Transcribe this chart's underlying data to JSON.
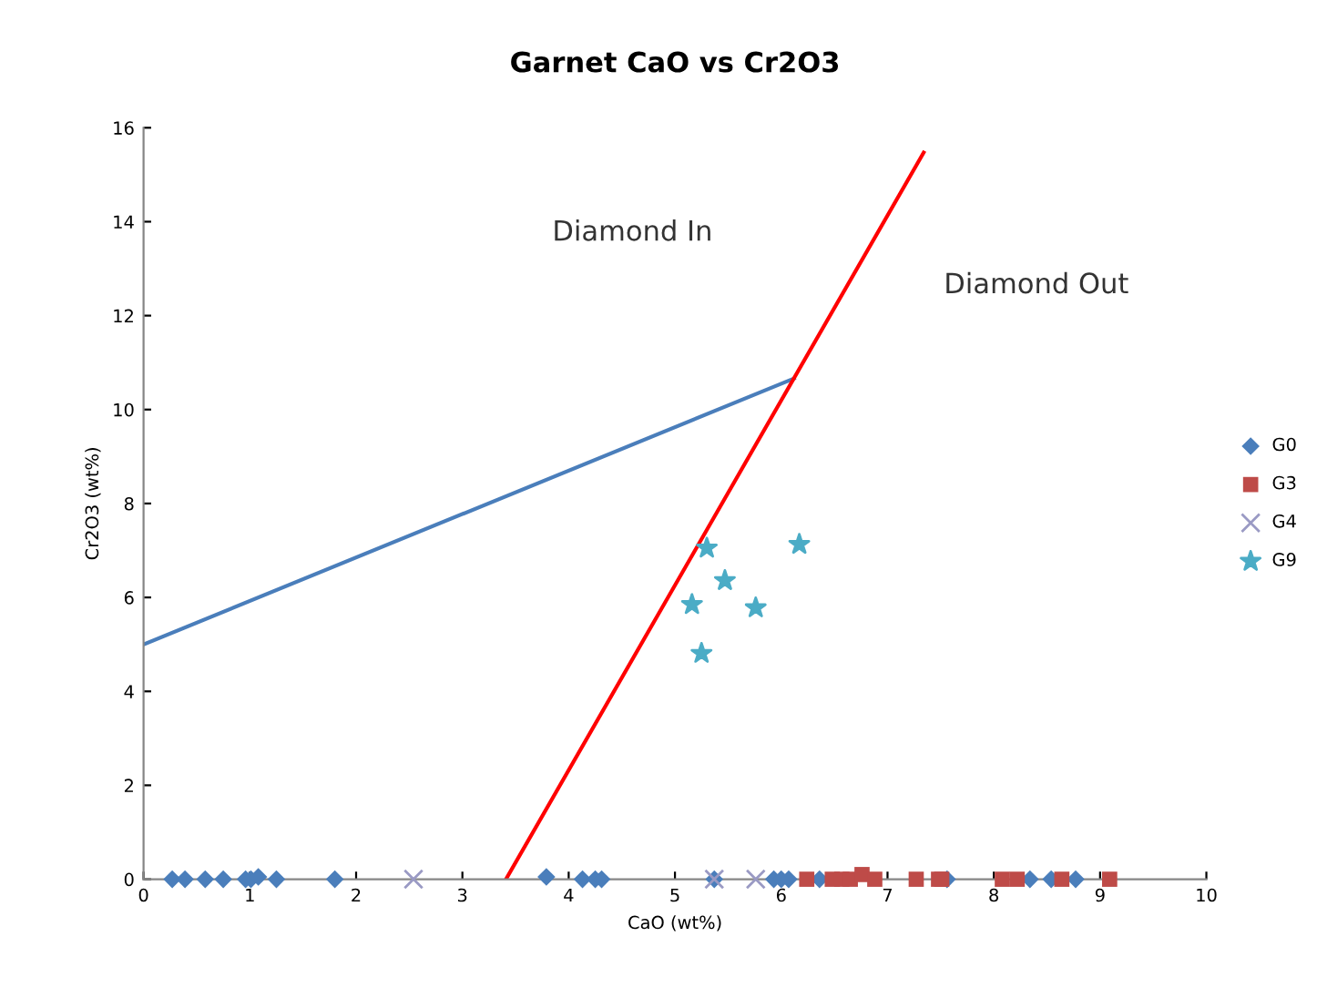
{
  "chart_data": {
    "type": "scatter",
    "title": "Garnet CaO vs Cr2O3",
    "xlabel": "CaO (wt%)",
    "ylabel": "Cr2O3 (wt%)",
    "xlim": [
      0,
      10
    ],
    "ylim": [
      0,
      16
    ],
    "xticks": [
      0,
      1,
      2,
      3,
      4,
      5,
      6,
      7,
      8,
      9,
      10
    ],
    "yticks": [
      0,
      2,
      4,
      6,
      8,
      10,
      12,
      14,
      16
    ],
    "grid": false,
    "legend": "right",
    "annotations": [
      "Diamond In",
      "Diamond Out"
    ],
    "series": [
      {
        "name": "G0",
        "marker": "diamond",
        "color": "#4a7ebb",
        "x": [
          0.27,
          0.39,
          0.58,
          0.75,
          0.96,
          1.01,
          1.08,
          1.22,
          1.25,
          1.8,
          3.79,
          4.13,
          4.25,
          4.31,
          5.37,
          5.93,
          6.0,
          6.07,
          6.36,
          7.56,
          8.34,
          8.54,
          8.77
        ],
        "values": [
          0,
          0,
          0,
          0,
          0,
          0,
          0.05,
          null,
          0,
          0,
          0.05,
          0,
          0,
          0,
          0,
          0,
          0,
          0,
          0,
          0,
          0,
          0,
          0
        ]
      },
      {
        "name": "G3",
        "marker": "square",
        "color": "#be4b48",
        "x": [
          6.24,
          6.48,
          6.57,
          6.65,
          6.76,
          6.82,
          6.88,
          7.27,
          7.48,
          7.51,
          8.08,
          8.22,
          8.64,
          9.09
        ],
        "values": [
          0,
          0,
          0,
          0,
          0.1,
          null,
          0,
          0,
          0,
          0,
          0,
          0,
          0,
          0
        ]
      },
      {
        "name": "G4",
        "marker": "cross",
        "color": "#9a9ac4",
        "x": [
          2.54,
          5.37,
          5.76
        ],
        "values": [
          0,
          0,
          0
        ]
      },
      {
        "name": "G9",
        "marker": "star",
        "color": "#4bacc6",
        "x": [
          5.3,
          6.17,
          5.47,
          5.16,
          5.76,
          5.25
        ],
        "values": [
          7.05,
          7.13,
          6.36,
          5.85,
          5.78,
          4.81
        ]
      },
      {
        "type": "line",
        "marker": "none",
        "color": "#4a7ebb",
        "x": [
          0,
          6.12
        ],
        "values": [
          5,
          10.66
        ]
      },
      {
        "type": "line",
        "marker": "none",
        "color": "#ff0000",
        "x": [
          3.41,
          7.34
        ],
        "values": [
          0,
          15.47
        ]
      }
    ]
  }
}
